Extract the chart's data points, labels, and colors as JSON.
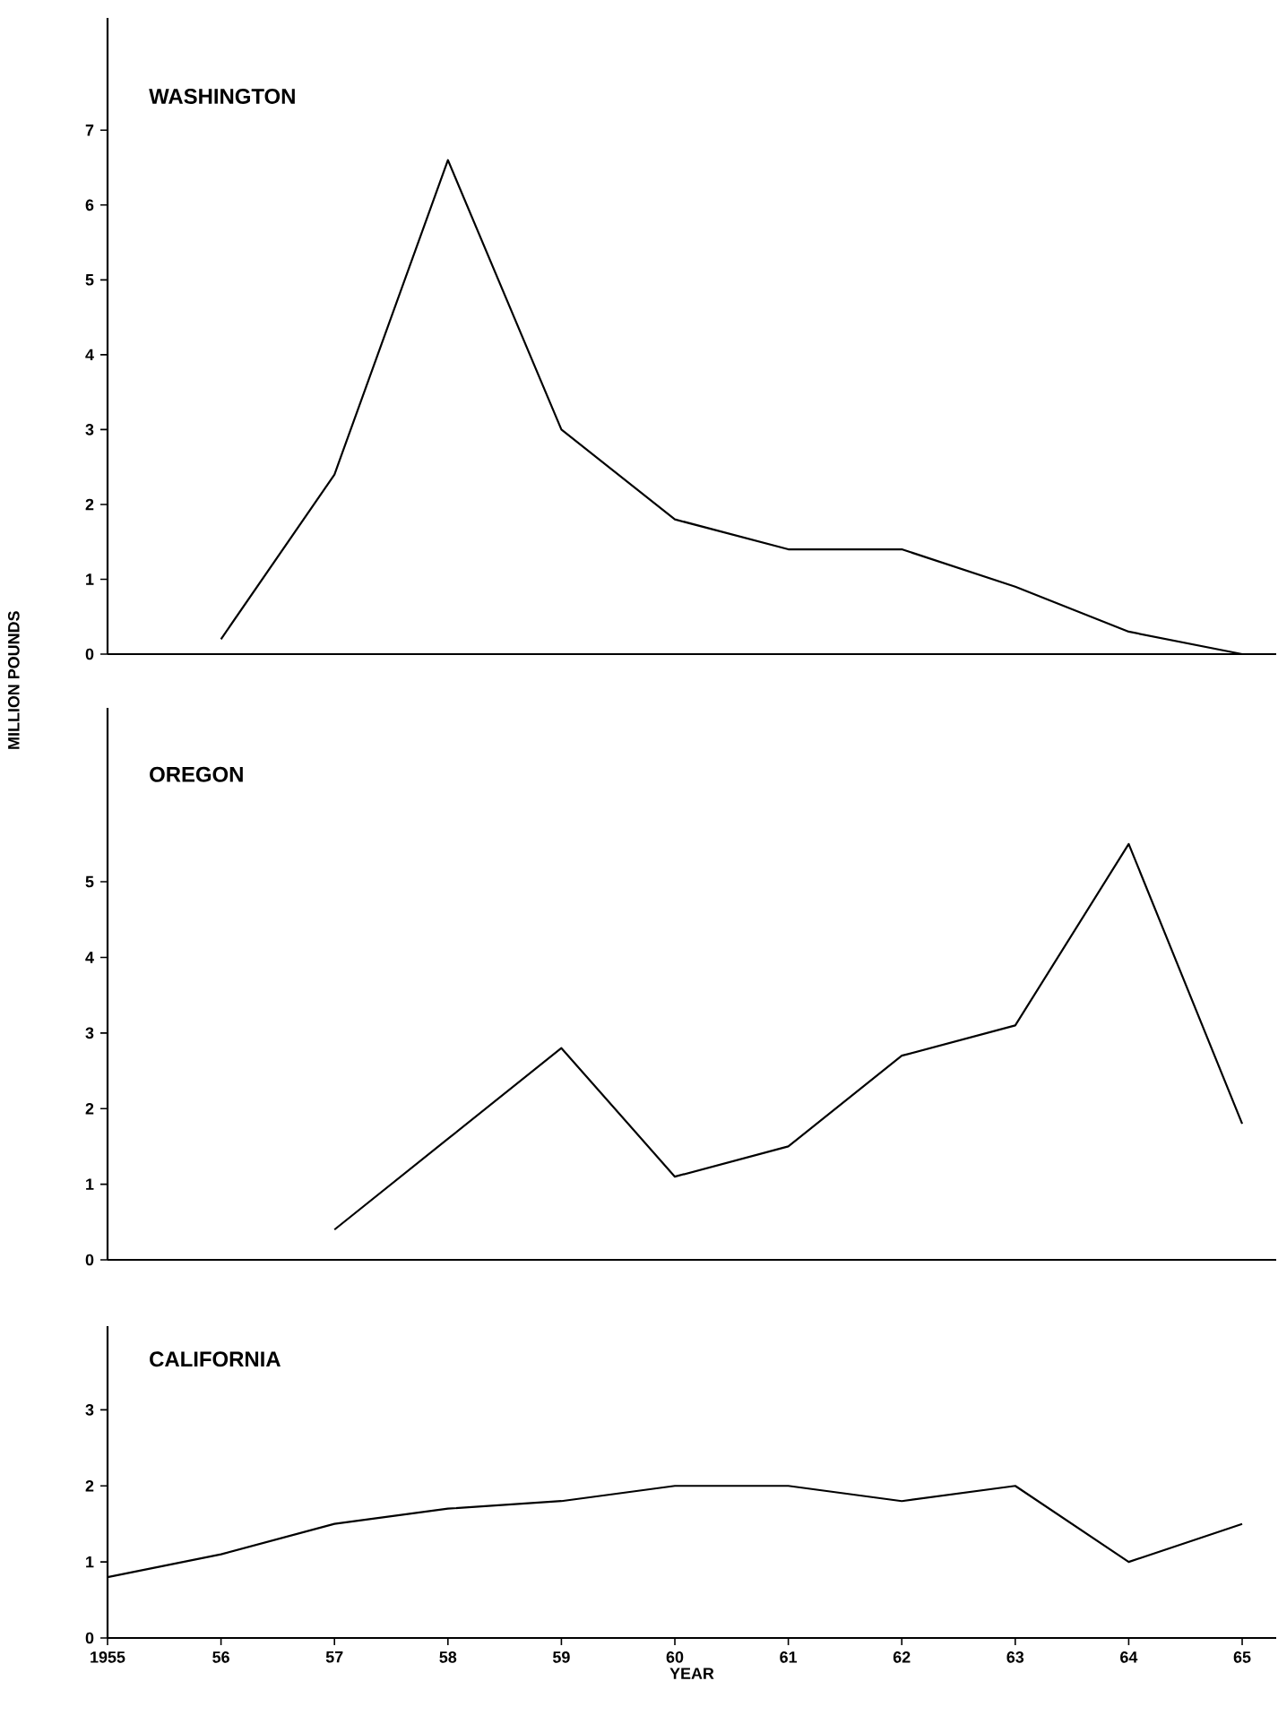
{
  "chart_data": [
    {
      "type": "line",
      "title": "WASHINGTON",
      "series": [
        {
          "color": "#000000",
          "x": [
            1956,
            1957,
            1958,
            1959,
            1960,
            1961,
            1962,
            1963,
            1964,
            1965
          ],
          "values": [
            0.2,
            2.4,
            6.6,
            3.0,
            1.8,
            1.4,
            1.4,
            0.9,
            0.3,
            0.0
          ]
        }
      ],
      "xlim": [
        1955,
        1965.3
      ],
      "ylim": [
        0,
        8.5
      ],
      "yticks": [
        0,
        1,
        2,
        3,
        4,
        5,
        6,
        7
      ],
      "tick_labels": "y"
    },
    {
      "type": "line",
      "title": "OREGON",
      "ylabel": "MILLION POUNDS",
      "series": [
        {
          "color": "#000000",
          "x": [
            1957,
            1958,
            1959,
            1960,
            1961,
            1962,
            1963,
            1964,
            1965
          ],
          "values": [
            0.4,
            1.6,
            2.8,
            1.1,
            1.5,
            2.7,
            3.1,
            5.5,
            1.8
          ]
        }
      ],
      "xlim": [
        1955,
        1965.3
      ],
      "ylim": [
        0,
        7.3
      ],
      "yticks": [
        0,
        1,
        2,
        3,
        4,
        5
      ],
      "tick_labels": "y"
    },
    {
      "type": "line",
      "title": "CALIFORNIA",
      "xlabel": "YEAR",
      "x": [
        1955,
        1956,
        1957,
        1958,
        1959,
        1960,
        1961,
        1962,
        1963,
        1964,
        1965
      ],
      "series": [
        {
          "color": "#000000",
          "values": [
            0.8,
            1.1,
            1.5,
            1.7,
            1.8,
            2.0,
            2.0,
            1.8,
            2.0,
            1.0,
            1.5
          ]
        }
      ],
      "xlim": [
        1955,
        1965.3
      ],
      "ylim": [
        0,
        4.1
      ],
      "yticks": [
        0,
        1,
        2,
        3
      ],
      "xticks": [
        1955,
        {
          "value": 1956,
          "label": "56"
        },
        {
          "value": 1957,
          "label": "57"
        },
        {
          "value": 1958,
          "label": "58"
        },
        {
          "value": 1959,
          "label": "59"
        },
        {
          "value": 1960,
          "label": "60"
        },
        {
          "value": 1961,
          "label": "61"
        },
        {
          "value": 1962,
          "label": "62"
        },
        {
          "value": 1963,
          "label": "63"
        },
        {
          "value": 1964,
          "label": "64"
        },
        {
          "value": 1965,
          "label": "65"
        }
      ]
    }
  ]
}
